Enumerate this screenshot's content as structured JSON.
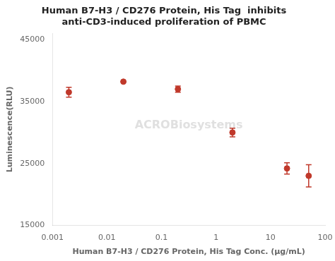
{
  "chart_data": {
    "type": "scatter",
    "title": [
      "Human B7-H3 / CD276 Protein, His Tag  inhibits",
      "anti-CD3-induced proliferation of PBMC"
    ],
    "x_label": "Human B7-H3 / CD276 Protein, His Tag Conc. (μg/mL)",
    "y_label": "Luminescence(RLU)",
    "x": [
      0.002,
      0.02,
      0.2,
      2.0,
      20.0,
      50.0
    ],
    "values": [
      36500,
      38200,
      37000,
      30000,
      24200,
      23000
    ],
    "errors": [
      800,
      0,
      500,
      700,
      900,
      1800
    ],
    "color": "#c0392b",
    "marker": "circle",
    "log": "x",
    "xlim": [
      0.001,
      100
    ],
    "xticks": [
      0.001,
      0.01,
      0.1,
      1,
      10,
      100
    ],
    "ylim": [
      15000,
      46000
    ],
    "yticks": [
      15000,
      25000,
      35000,
      45000
    ],
    "grid": false,
    "annotation": "ACROBiosystems"
  }
}
